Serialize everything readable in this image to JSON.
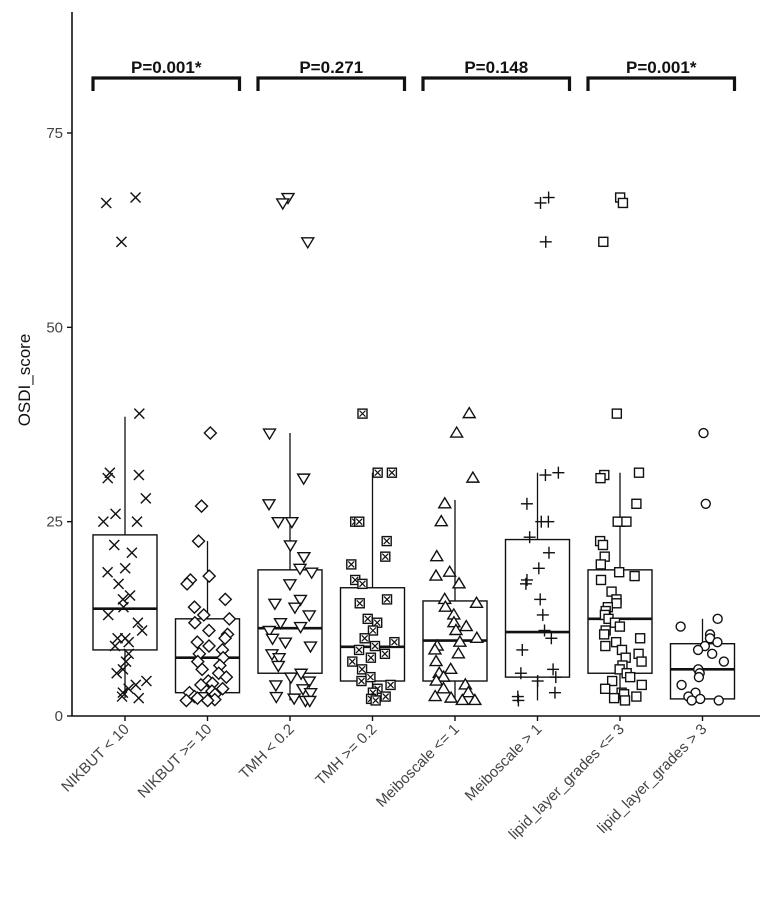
{
  "chart_data": {
    "type": "boxplot",
    "title": "",
    "ylabel": "OSDI_score",
    "xlabel": "",
    "ylim": [
      0,
      90
    ],
    "yticks": [
      0,
      25,
      50,
      75
    ],
    "ytick_labels": [
      "0",
      "25",
      "50",
      "75"
    ],
    "grid": false,
    "legend": "none",
    "categories": [
      "NIKBUT < 10",
      "NIKBUT >= 10",
      "TMH < 0.2",
      "TMH >= 0.2",
      "Meiboscale <= 1",
      "Meiboscale > 1",
      "lipid_layer_grades <= 3",
      "lipid_layer_grades > 3"
    ],
    "boxes": [
      {
        "category": "NIKBUT < 10",
        "marker": "x",
        "whisker_low": 2.3,
        "q1": 8.5,
        "median": 13.8,
        "q3": 23.3,
        "whisker_high": 38.5,
        "points": [
          66.7,
          66.0,
          61.0,
          38.9,
          31.3,
          31.0,
          30.6,
          28.0,
          26.0,
          25.0,
          25.0,
          22.0,
          21.0,
          19.0,
          18.5,
          17.0,
          15.5,
          15.0,
          14.0,
          13.0,
          12.0,
          11.0,
          10.0,
          10.0,
          9.5,
          9.0,
          8.0,
          7.0,
          6.0,
          5.5,
          4.5,
          4.0,
          3.5,
          3.0,
          2.5,
          2.3
        ]
      },
      {
        "category": "NIKBUT >= 10",
        "marker": "diamond",
        "whisker_low": 2.0,
        "q1": 3.0,
        "median": 7.5,
        "q3": 12.5,
        "whisker_high": 22.5,
        "points": [
          36.4,
          27.0,
          22.5,
          18.0,
          17.5,
          17.0,
          15.0,
          14.0,
          13.0,
          12.5,
          12.0,
          11.0,
          10.5,
          10.0,
          9.5,
          9.0,
          8.5,
          8.0,
          7.5,
          7.0,
          6.5,
          6.0,
          5.5,
          5.0,
          4.5,
          4.2,
          4.0,
          3.5,
          3.2,
          3.0,
          2.8,
          2.5,
          2.3,
          2.1,
          2.0,
          2.0
        ]
      },
      {
        "category": "TMH < 0.2",
        "marker": "triangle-down",
        "whisker_low": 2.0,
        "q1": 5.5,
        "median": 11.3,
        "q3": 18.8,
        "whisker_high": 36.4,
        "points": [
          66.7,
          66.0,
          61.0,
          36.4,
          30.6,
          27.3,
          25.0,
          25.0,
          22.0,
          20.5,
          19.0,
          18.5,
          17.0,
          15.0,
          14.5,
          14.0,
          13.0,
          12.0,
          11.5,
          11.0,
          10.0,
          9.5,
          9.0,
          8.0,
          7.5,
          6.5,
          5.5,
          5.0,
          4.5,
          4.0,
          3.5,
          3.0,
          2.5,
          2.3,
          2.0,
          2.0
        ]
      },
      {
        "category": "TMH >= 0.2",
        "marker": "square-x",
        "whisker_low": 2.0,
        "q1": 4.5,
        "median": 8.9,
        "q3": 16.5,
        "whisker_high": 31.3,
        "points": [
          38.9,
          31.3,
          31.3,
          25.0,
          25.0,
          22.5,
          20.5,
          19.5,
          17.5,
          17.0,
          15.0,
          14.5,
          12.5,
          12.0,
          11.0,
          10.0,
          9.5,
          9.0,
          8.5,
          8.0,
          7.5,
          7.0,
          6.0,
          5.0,
          4.5,
          4.0,
          3.5,
          3.0,
          2.5,
          2.2,
          2.0
        ]
      },
      {
        "category": "Meiboscale <= 1",
        "marker": "triangle-up",
        "whisker_low": 2.0,
        "q1": 4.5,
        "median": 9.7,
        "q3": 14.8,
        "whisker_high": 27.8,
        "points": [
          38.9,
          36.4,
          30.6,
          27.3,
          25.0,
          20.5,
          18.5,
          18.0,
          17.0,
          15.0,
          14.5,
          14.0,
          13.0,
          12.0,
          11.5,
          11.0,
          10.0,
          9.5,
          9.0,
          8.5,
          8.0,
          7.0,
          6.0,
          5.5,
          5.0,
          4.5,
          4.0,
          3.5,
          3.0,
          2.5,
          2.3,
          2.0,
          2.0
        ]
      },
      {
        "category": "Meiboscale > 1",
        "marker": "plus",
        "whisker_low": 2.0,
        "q1": 5.0,
        "median": 10.8,
        "q3": 22.7,
        "whisker_high": 31.3,
        "points": [
          66.7,
          66.0,
          61.0,
          31.3,
          31.0,
          27.3,
          25.0,
          25.0,
          23.0,
          21.0,
          19.0,
          17.5,
          17.0,
          15.0,
          13.0,
          11.0,
          10.0,
          8.5,
          6.0,
          5.5,
          5.0,
          4.5,
          3.0,
          2.5,
          2.0
        ]
      },
      {
        "category": "lipid_layer_grades <= 3",
        "marker": "square",
        "whisker_low": 2.0,
        "q1": 5.5,
        "median": 12.5,
        "q3": 18.8,
        "whisker_high": 31.3,
        "points": [
          66.7,
          66.0,
          61.0,
          38.9,
          31.3,
          31.0,
          30.6,
          27.3,
          25.0,
          25.0,
          25.0,
          22.5,
          22.0,
          20.5,
          19.5,
          18.5,
          18.0,
          17.5,
          16.0,
          15.0,
          14.5,
          14.0,
          13.5,
          13.0,
          12.5,
          12.0,
          11.5,
          11.0,
          10.5,
          10.0,
          9.5,
          9.0,
          8.5,
          8.0,
          7.5,
          7.0,
          6.5,
          6.0,
          5.5,
          5.0,
          4.5,
          4.0,
          3.5,
          3.0,
          2.8,
          2.5,
          2.3,
          2.0
        ]
      },
      {
        "category": "lipid_layer_grades > 3",
        "marker": "circle",
        "whisker_low": 2.0,
        "q1": 2.2,
        "median": 6.0,
        "q3": 9.3,
        "whisker_high": 12.5,
        "points": [
          36.4,
          27.3,
          12.5,
          11.5,
          10.5,
          10.0,
          9.5,
          9.0,
          8.5,
          8.0,
          7.0,
          6.0,
          5.5,
          5.0,
          4.0,
          3.0,
          2.5,
          2.2,
          2.0,
          2.0
        ]
      }
    ],
    "annotations": [
      {
        "label": "P=0.001*",
        "group_start": 0,
        "group_end": 1
      },
      {
        "label": "P=0.271",
        "group_start": 2,
        "group_end": 3
      },
      {
        "label": "P=0.148",
        "group_start": 4,
        "group_end": 5
      },
      {
        "label": "P=0.001*",
        "group_start": 6,
        "group_end": 7
      }
    ]
  }
}
